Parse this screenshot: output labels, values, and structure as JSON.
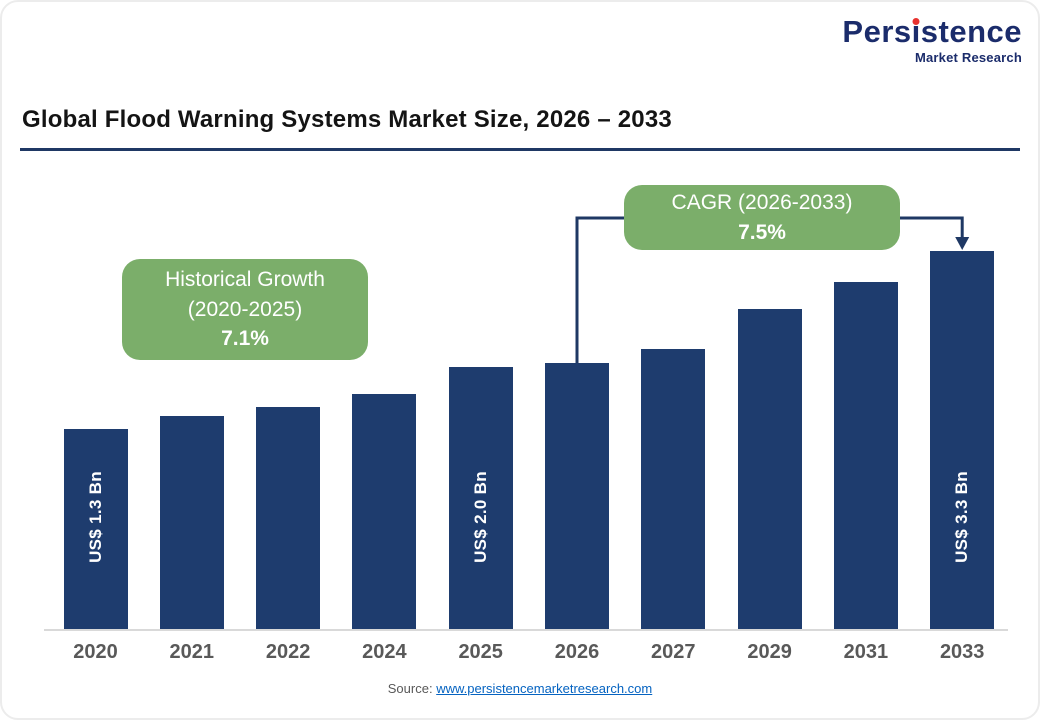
{
  "logo": {
    "brand": "Persistence",
    "sub": "Market Research"
  },
  "title": "Global Flood Warning Systems Market Size, 2026 – 2033",
  "annotations": {
    "historical": {
      "line1": "Historical Growth",
      "line2": "(2020-2025)",
      "value": "7.1%"
    },
    "cagr": {
      "line1": "CAGR (2026-2033)",
      "value": "7.5%",
      "from_year": "2026",
      "to_year": "2033"
    }
  },
  "source": {
    "label": "Source:",
    "url": "www.persistencemarketresearch.com"
  },
  "colors": {
    "bar": "#1e3c6e",
    "green": "#7bae6a",
    "navy": "#1f3864",
    "link": "#0563c1",
    "logo_navy": "#1b2c6b",
    "logo_red": "#e8322e",
    "tick": "#595959"
  },
  "chart_data": {
    "type": "bar",
    "title": "Global Flood Warning Systems Market Size, 2026 – 2033",
    "categories": [
      "2020",
      "2021",
      "2022",
      "2024",
      "2025",
      "2026",
      "2027",
      "2029",
      "2031",
      "2033"
    ],
    "values": [
      1.3,
      1.45,
      1.55,
      1.7,
      2.0,
      2.05,
      2.2,
      2.65,
      2.95,
      3.3
    ],
    "unit": "US$ Bn",
    "bar_labels": [
      "US$ 1.3 Bn",
      "",
      "",
      "",
      "US$ 2.0 Bn",
      "",
      "",
      "",
      "",
      "US$ 3.3 Bn"
    ],
    "xlabel": "",
    "ylabel": "",
    "ylim": [
      0,
      3.5
    ],
    "grid": false,
    "legend": "none",
    "callouts": [
      "Historical Growth (2020-2025): 7.1%",
      "CAGR (2026-2033): 7.5%"
    ]
  }
}
